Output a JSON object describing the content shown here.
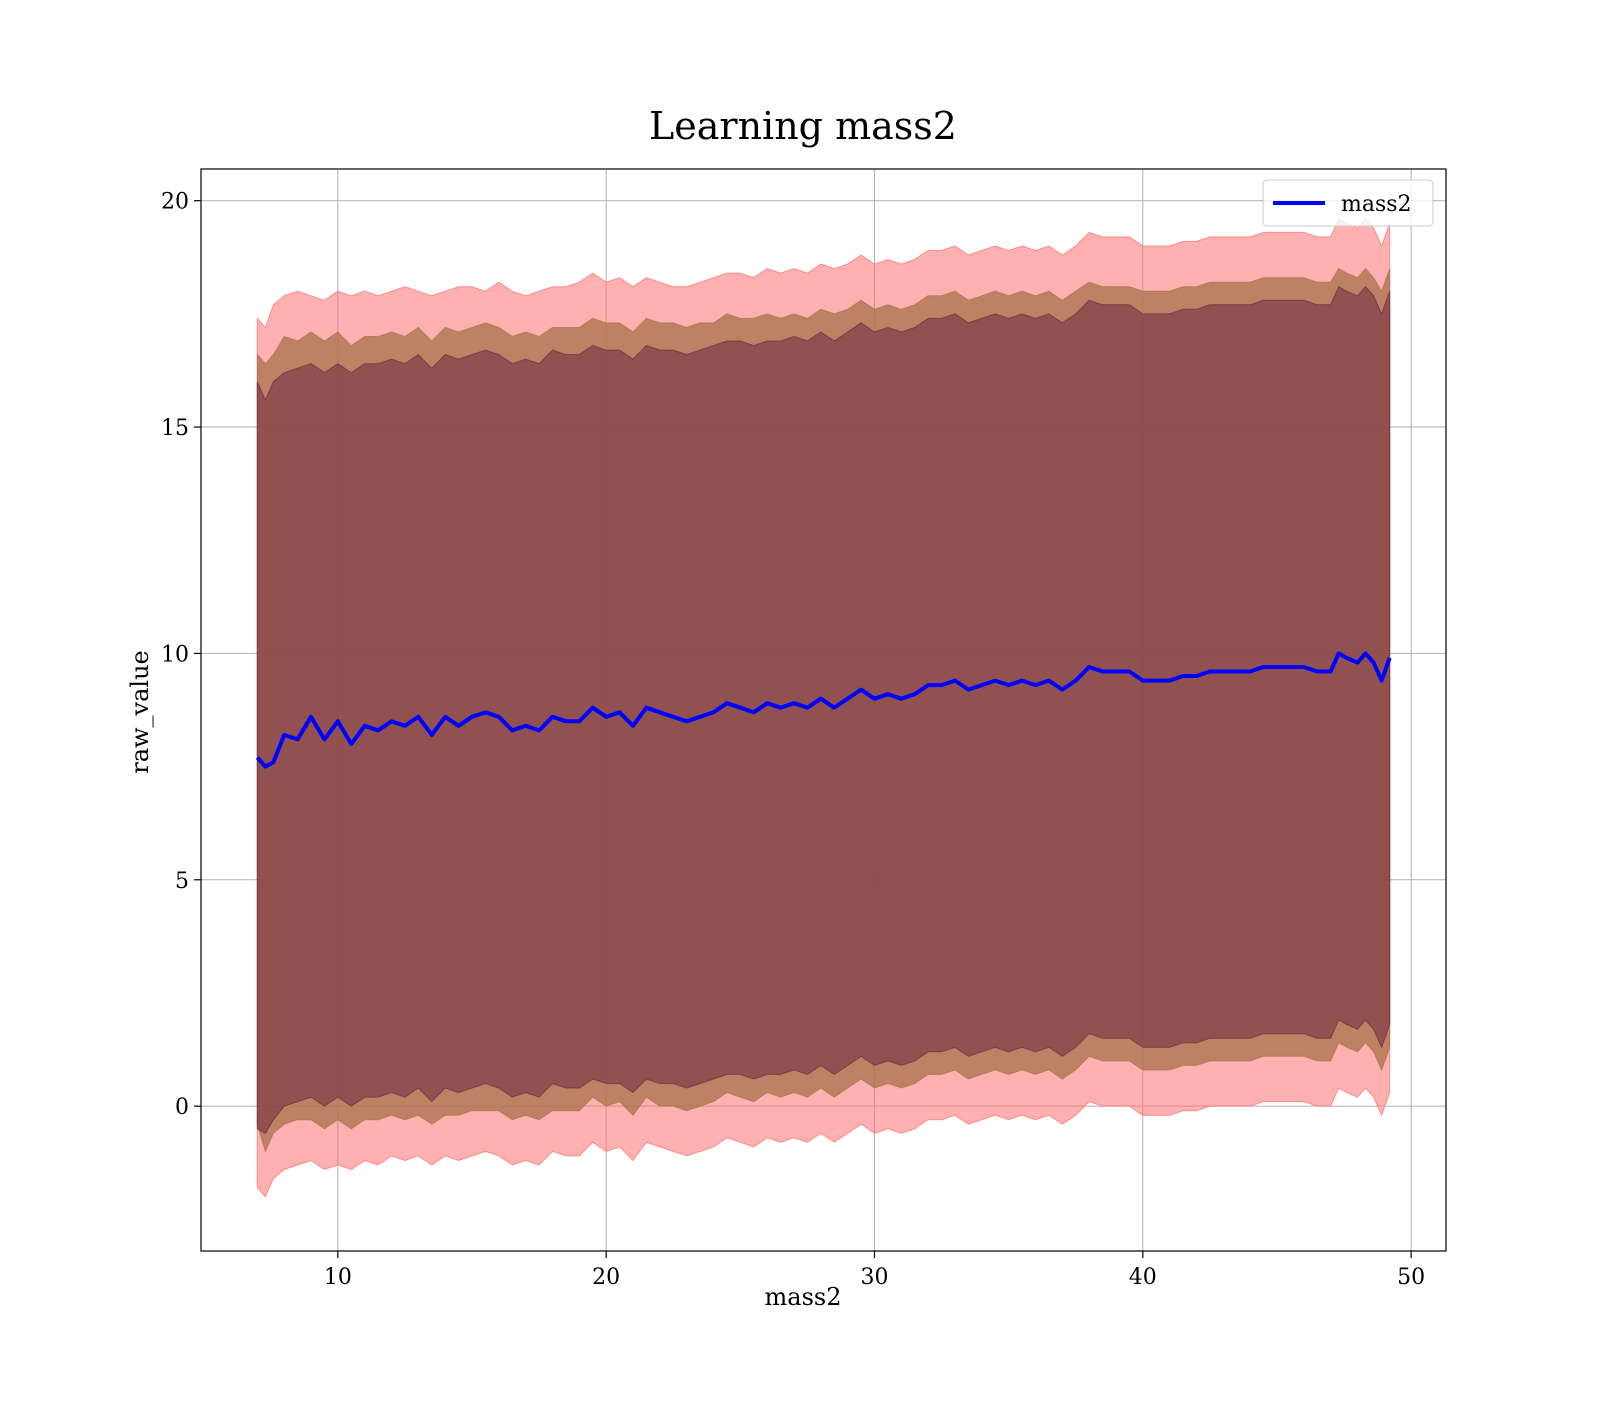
{
  "chart_data": {
    "type": "line",
    "title": "Learning mass2",
    "xlabel": "mass2",
    "ylabel": "raw_value",
    "xlim": [
      4.9,
      51.3
    ],
    "ylim": [
      -3.2,
      20.7
    ],
    "xticks": [
      10,
      20,
      30,
      40,
      50
    ],
    "yticks": [
      0,
      5,
      10,
      15,
      20
    ],
    "grid": true,
    "legend": {
      "position": "top-right",
      "entries": [
        "mass2"
      ]
    },
    "colors": {
      "line": "#0000ff",
      "band_outer": "#ff6f6f",
      "band_middle": "#a7724a",
      "band_inner": "#6e2a43",
      "grid": "#b0b0b0",
      "axes": "#000000"
    },
    "series": [
      {
        "name": "mass2",
        "x": [
          7.0,
          7.3,
          7.6,
          8.0,
          8.5,
          9.0,
          9.5,
          10.0,
          10.5,
          11.0,
          11.5,
          12.0,
          12.5,
          13.0,
          13.5,
          14.0,
          14.5,
          15.0,
          15.5,
          16.0,
          16.5,
          17.0,
          17.5,
          18.0,
          18.5,
          19.0,
          19.5,
          20.0,
          20.5,
          21.0,
          21.5,
          22.0,
          22.5,
          23.0,
          23.5,
          24.0,
          24.5,
          25.0,
          25.5,
          26.0,
          26.5,
          27.0,
          27.5,
          28.0,
          28.5,
          29.0,
          29.5,
          30.0,
          30.5,
          31.0,
          31.5,
          32.0,
          32.5,
          33.0,
          33.5,
          34.0,
          34.5,
          35.0,
          35.5,
          36.0,
          36.5,
          37.0,
          37.5,
          38.0,
          38.5,
          39.0,
          39.5,
          40.0,
          40.5,
          41.0,
          41.5,
          42.0,
          42.5,
          43.0,
          43.5,
          44.0,
          44.5,
          45.0,
          45.5,
          46.0,
          46.5,
          47.0,
          47.3,
          47.6,
          48.0,
          48.3,
          48.6,
          48.9,
          49.2
        ],
        "y": [
          7.7,
          7.5,
          7.6,
          8.2,
          8.1,
          8.6,
          8.1,
          8.5,
          8.0,
          8.4,
          8.3,
          8.5,
          8.4,
          8.6,
          8.2,
          8.6,
          8.4,
          8.6,
          8.7,
          8.6,
          8.3,
          8.4,
          8.3,
          8.6,
          8.5,
          8.5,
          8.8,
          8.6,
          8.7,
          8.4,
          8.8,
          8.7,
          8.6,
          8.5,
          8.6,
          8.7,
          8.9,
          8.8,
          8.7,
          8.9,
          8.8,
          8.9,
          8.8,
          9.0,
          8.8,
          9.0,
          9.2,
          9.0,
          9.1,
          9.0,
          9.1,
          9.3,
          9.3,
          9.4,
          9.2,
          9.3,
          9.4,
          9.3,
          9.4,
          9.3,
          9.4,
          9.2,
          9.4,
          9.7,
          9.6,
          9.6,
          9.6,
          9.4,
          9.4,
          9.4,
          9.5,
          9.5,
          9.6,
          9.6,
          9.6,
          9.6,
          9.7,
          9.7,
          9.7,
          9.7,
          9.6,
          9.6,
          10.0,
          9.9,
          9.8,
          10.0,
          9.8,
          9.4,
          9.9
        ],
        "bands": [
          {
            "name": "outer",
            "upper": [
              17.4,
              17.2,
              17.7,
              17.9,
              18.0,
              17.9,
              17.8,
              18.0,
              17.9,
              18.0,
              17.9,
              18.0,
              18.1,
              18.0,
              17.9,
              18.0,
              18.1,
              18.1,
              18.0,
              18.2,
              18.0,
              17.9,
              18.0,
              18.1,
              18.1,
              18.2,
              18.4,
              18.2,
              18.3,
              18.1,
              18.3,
              18.2,
              18.1,
              18.1,
              18.2,
              18.3,
              18.4,
              18.4,
              18.3,
              18.5,
              18.4,
              18.5,
              18.4,
              18.6,
              18.5,
              18.6,
              18.8,
              18.6,
              18.7,
              18.6,
              18.7,
              18.9,
              18.9,
              19.0,
              18.8,
              18.9,
              19.0,
              18.9,
              19.0,
              18.9,
              19.0,
              18.8,
              19.0,
              19.3,
              19.2,
              19.2,
              19.2,
              19.0,
              19.0,
              19.0,
              19.1,
              19.1,
              19.2,
              19.2,
              19.2,
              19.2,
              19.3,
              19.3,
              19.3,
              19.3,
              19.2,
              19.2,
              19.6,
              19.5,
              19.4,
              19.6,
              19.4,
              19.0,
              19.5
            ],
            "lower": [
              -1.8,
              -2.0,
              -1.6,
              -1.4,
              -1.3,
              -1.2,
              -1.4,
              -1.3,
              -1.4,
              -1.2,
              -1.3,
              -1.1,
              -1.2,
              -1.1,
              -1.3,
              -1.1,
              -1.2,
              -1.1,
              -1.0,
              -1.1,
              -1.3,
              -1.2,
              -1.3,
              -1.0,
              -1.1,
              -1.1,
              -0.8,
              -1.0,
              -0.9,
              -1.2,
              -0.8,
              -0.9,
              -1.0,
              -1.1,
              -1.0,
              -0.9,
              -0.7,
              -0.8,
              -0.9,
              -0.7,
              -0.8,
              -0.7,
              -0.8,
              -0.6,
              -0.8,
              -0.6,
              -0.4,
              -0.6,
              -0.5,
              -0.6,
              -0.5,
              -0.3,
              -0.3,
              -0.2,
              -0.4,
              -0.3,
              -0.2,
              -0.3,
              -0.2,
              -0.3,
              -0.2,
              -0.4,
              -0.2,
              0.1,
              0.0,
              0.0,
              0.0,
              -0.2,
              -0.2,
              -0.2,
              -0.1,
              -0.1,
              0.0,
              0.0,
              0.0,
              0.0,
              0.1,
              0.1,
              0.1,
              0.1,
              0.0,
              0.0,
              0.4,
              0.3,
              0.2,
              0.4,
              0.2,
              -0.2,
              0.3
            ]
          },
          {
            "name": "middle",
            "upper": [
              16.6,
              16.4,
              16.6,
              17.0,
              16.9,
              17.1,
              16.9,
              17.1,
              16.8,
              17.0,
              17.0,
              17.1,
              17.0,
              17.2,
              16.9,
              17.2,
              17.1,
              17.2,
              17.3,
              17.2,
              17.0,
              17.1,
              17.0,
              17.2,
              17.2,
              17.2,
              17.4,
              17.3,
              17.3,
              17.1,
              17.4,
              17.3,
              17.3,
              17.2,
              17.3,
              17.3,
              17.5,
              17.4,
              17.4,
              17.5,
              17.4,
              17.5,
              17.4,
              17.6,
              17.5,
              17.6,
              17.8,
              17.6,
              17.7,
              17.6,
              17.7,
              17.9,
              17.9,
              18.0,
              17.8,
              17.9,
              18.0,
              17.9,
              18.0,
              17.9,
              18.0,
              17.8,
              18.0,
              18.2,
              18.1,
              18.1,
              18.1,
              18.0,
              18.0,
              18.0,
              18.1,
              18.1,
              18.2,
              18.2,
              18.2,
              18.2,
              18.3,
              18.3,
              18.3,
              18.3,
              18.2,
              18.2,
              18.5,
              18.4,
              18.3,
              18.5,
              18.3,
              18.0,
              18.5
            ],
            "lower": [
              -0.4,
              -1.0,
              -0.6,
              -0.4,
              -0.3,
              -0.3,
              -0.5,
              -0.3,
              -0.5,
              -0.3,
              -0.3,
              -0.2,
              -0.3,
              -0.2,
              -0.4,
              -0.2,
              -0.2,
              -0.1,
              -0.1,
              -0.1,
              -0.3,
              -0.2,
              -0.3,
              -0.1,
              -0.1,
              -0.1,
              0.2,
              0.0,
              0.1,
              -0.2,
              0.2,
              0.0,
              0.0,
              -0.1,
              0.0,
              0.1,
              0.3,
              0.2,
              0.1,
              0.3,
              0.2,
              0.3,
              0.2,
              0.4,
              0.2,
              0.4,
              0.6,
              0.4,
              0.5,
              0.4,
              0.5,
              0.7,
              0.7,
              0.8,
              0.6,
              0.7,
              0.8,
              0.7,
              0.8,
              0.7,
              0.8,
              0.6,
              0.8,
              1.1,
              1.0,
              1.0,
              1.0,
              0.8,
              0.8,
              0.8,
              0.9,
              0.9,
              1.0,
              1.0,
              1.0,
              1.0,
              1.1,
              1.1,
              1.1,
              1.1,
              1.0,
              1.0,
              1.4,
              1.3,
              1.2,
              1.4,
              1.2,
              0.8,
              1.3
            ]
          },
          {
            "name": "inner",
            "upper": [
              16.0,
              15.6,
              16.0,
              16.2,
              16.3,
              16.4,
              16.2,
              16.4,
              16.2,
              16.4,
              16.4,
              16.5,
              16.4,
              16.6,
              16.3,
              16.6,
              16.5,
              16.6,
              16.7,
              16.6,
              16.4,
              16.5,
              16.4,
              16.7,
              16.6,
              16.6,
              16.8,
              16.7,
              16.7,
              16.5,
              16.8,
              16.7,
              16.7,
              16.6,
              16.7,
              16.8,
              16.9,
              16.9,
              16.8,
              16.9,
              16.9,
              17.0,
              16.9,
              17.1,
              16.9,
              17.1,
              17.3,
              17.1,
              17.2,
              17.1,
              17.2,
              17.4,
              17.4,
              17.5,
              17.3,
              17.4,
              17.5,
              17.4,
              17.5,
              17.4,
              17.5,
              17.3,
              17.5,
              17.8,
              17.7,
              17.7,
              17.7,
              17.5,
              17.5,
              17.5,
              17.6,
              17.6,
              17.7,
              17.7,
              17.7,
              17.7,
              17.8,
              17.8,
              17.8,
              17.8,
              17.7,
              17.7,
              18.1,
              18.0,
              17.9,
              18.1,
              17.9,
              17.5,
              18.0
            ],
            "lower": [
              -0.5,
              -0.6,
              -0.3,
              0.0,
              0.1,
              0.2,
              0.0,
              0.2,
              0.0,
              0.2,
              0.2,
              0.3,
              0.2,
              0.4,
              0.1,
              0.4,
              0.3,
              0.4,
              0.5,
              0.4,
              0.2,
              0.3,
              0.2,
              0.5,
              0.4,
              0.4,
              0.6,
              0.5,
              0.5,
              0.3,
              0.6,
              0.5,
              0.5,
              0.4,
              0.5,
              0.6,
              0.7,
              0.7,
              0.6,
              0.7,
              0.7,
              0.8,
              0.7,
              0.9,
              0.7,
              0.9,
              1.1,
              0.9,
              1.0,
              0.9,
              1.0,
              1.2,
              1.2,
              1.3,
              1.1,
              1.2,
              1.3,
              1.2,
              1.3,
              1.2,
              1.3,
              1.1,
              1.3,
              1.6,
              1.5,
              1.5,
              1.5,
              1.3,
              1.3,
              1.3,
              1.4,
              1.4,
              1.5,
              1.5,
              1.5,
              1.5,
              1.6,
              1.6,
              1.6,
              1.6,
              1.5,
              1.5,
              1.9,
              1.8,
              1.7,
              1.9,
              1.7,
              1.3,
              1.8
            ]
          }
        ]
      }
    ]
  }
}
